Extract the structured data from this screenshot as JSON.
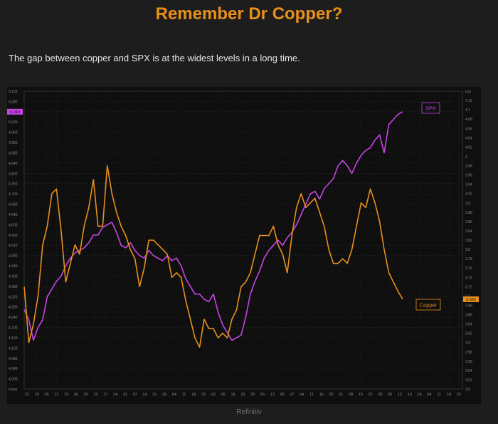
{
  "title": "Remember Dr Copper?",
  "subtitle": "The gap between copper and SPX is at the widest levels in a long time.",
  "footer": "Refinitiv",
  "colors": {
    "spx": "#c844e6",
    "copper": "#e8901c",
    "background": "#0f0f0f",
    "grid": "#262626",
    "axis_text": "#8a8a8a"
  },
  "chart_data": {
    "type": "line",
    "title": "Remember Dr Copper?",
    "subtitle": "The gap between copper and SPX is at the widest levels in a long time.",
    "grid": true,
    "legend": "inline labels near series ends",
    "left_axis": {
      "ylim": [
        3960,
        5120
      ],
      "ticks": [
        "5,120",
        "5,080",
        "5,040",
        "5,000",
        "4,960",
        "4,920",
        "4,880",
        "4,840",
        "4,800",
        "4,760",
        "4,720",
        "4,680",
        "4,640",
        "4,600",
        "4,560",
        "4,520",
        "4,480",
        "4,440",
        "4,400",
        "4,360",
        "4,320",
        "4,280",
        "4,240",
        "4,200",
        "4,160",
        "4,120",
        "4,080",
        "4,040",
        "4,000",
        "Index"
      ]
    },
    "right_axis": {
      "ylim": [
        3.49,
        4.13
      ],
      "ticks": [
        "Lbs",
        "4.12",
        "4.1",
        "4.08",
        "4.06",
        "4.04",
        "4.02",
        "4",
        "3.98",
        "3.96",
        "3.94",
        "3.92",
        "3.9",
        "3.88",
        "3.86",
        "3.84",
        "3.82",
        "3.8",
        "3.78",
        "3.76",
        "3.74",
        "3.72",
        "3.7",
        "3.68",
        "3.66",
        "3.64",
        "3.62",
        "3.6",
        "3.58",
        "3.56",
        "3.54",
        "3.52",
        "3.5"
      ]
    },
    "x_ticks": [
      "22",
      "29",
      "05",
      "12",
      "19",
      "26",
      "03",
      "10",
      "17",
      "24",
      "31",
      "07",
      "14",
      "21",
      "28",
      "04",
      "11",
      "18",
      "25",
      "02",
      "09",
      "16",
      "23",
      "30",
      "06",
      "13",
      "20",
      "27",
      "04",
      "11",
      "18",
      "25",
      "01",
      "08",
      "15",
      "22",
      "29",
      "05",
      "12",
      "19",
      "26",
      "04",
      "11",
      "18",
      "25"
    ],
    "series": [
      {
        "name": "SPX",
        "axis": "left",
        "last_value": "5,040",
        "values": [
          4270,
          4230,
          4150,
          4200,
          4230,
          4320,
          4350,
          4380,
          4400,
          4440,
          4470,
          4490,
          4500,
          4510,
          4530,
          4560,
          4560,
          4590,
          4600,
          4610,
          4570,
          4520,
          4510,
          4530,
          4500,
          4480,
          4470,
          4500,
          4480,
          4470,
          4460,
          4480,
          4460,
          4470,
          4440,
          4390,
          4360,
          4330,
          4330,
          4310,
          4300,
          4330,
          4260,
          4210,
          4180,
          4150,
          4160,
          4170,
          4240,
          4330,
          4380,
          4420,
          4470,
          4500,
          4520,
          4540,
          4520,
          4550,
          4570,
          4600,
          4640,
          4680,
          4720,
          4730,
          4700,
          4740,
          4760,
          4780,
          4830,
          4850,
          4830,
          4800,
          4840,
          4870,
          4890,
          4900,
          4930,
          4950,
          4880,
          4990,
          5010,
          5030,
          5040
        ]
      },
      {
        "name": "Copper",
        "axis": "right",
        "last_value": "3.683",
        "values": [
          3.71,
          3.59,
          3.63,
          3.69,
          3.8,
          3.84,
          3.91,
          3.92,
          3.83,
          3.72,
          3.76,
          3.8,
          3.78,
          3.84,
          3.88,
          3.94,
          3.84,
          3.84,
          3.97,
          3.91,
          3.87,
          3.84,
          3.82,
          3.79,
          3.77,
          3.71,
          3.75,
          3.81,
          3.81,
          3.8,
          3.79,
          3.78,
          3.73,
          3.74,
          3.73,
          3.68,
          3.64,
          3.6,
          3.58,
          3.64,
          3.62,
          3.62,
          3.6,
          3.61,
          3.6,
          3.64,
          3.66,
          3.71,
          3.72,
          3.74,
          3.78,
          3.82,
          3.82,
          3.82,
          3.84,
          3.8,
          3.78,
          3.74,
          3.82,
          3.88,
          3.91,
          3.88,
          3.89,
          3.9,
          3.87,
          3.84,
          3.79,
          3.76,
          3.76,
          3.77,
          3.76,
          3.79,
          3.84,
          3.89,
          3.88,
          3.92,
          3.89,
          3.85,
          3.79,
          3.74,
          3.72,
          3.7,
          3.683
        ]
      }
    ]
  }
}
